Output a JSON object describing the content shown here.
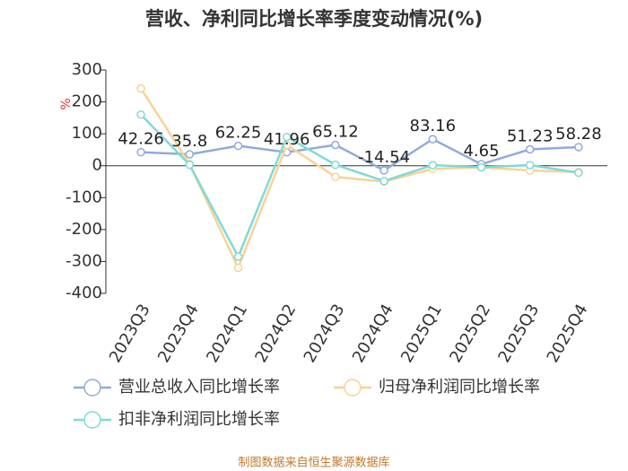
{
  "chart_data": {
    "type": "line",
    "title": "营收、净利同比增长率季度变动情况(%)",
    "y_label": "%",
    "categories": [
      "2023Q3",
      "2023Q4",
      "2024Q1",
      "2024Q2",
      "2024Q3",
      "2024Q4",
      "2025Q1",
      "2025Q2",
      "2025Q3",
      "2025Q4"
    ],
    "series": [
      {
        "name": "营业总收入同比增长率",
        "color": "#8faadc",
        "values": [
          42.26,
          35.8,
          62.25,
          41.96,
          65.12,
          -14.54,
          83.16,
          4.65,
          51.23,
          58.28
        ],
        "data_labels": true
      },
      {
        "name": "归母净利润同比增长率",
        "color": "#f7d394",
        "values": [
          242,
          5,
          -320,
          65,
          -35,
          -50,
          -10,
          -5,
          -15,
          -20
        ]
      },
      {
        "name": "扣非净利润同比增长率",
        "color": "#7fdad6",
        "values": [
          160,
          3,
          -285,
          90,
          3,
          -48,
          2,
          -5,
          2,
          -22
        ]
      }
    ],
    "ylim": [
      -400,
      300
    ],
    "yticks": [
      -400,
      -300,
      -200,
      -100,
      0,
      100,
      200,
      300
    ],
    "source": "制图数据来自恒生聚源数据库"
  }
}
